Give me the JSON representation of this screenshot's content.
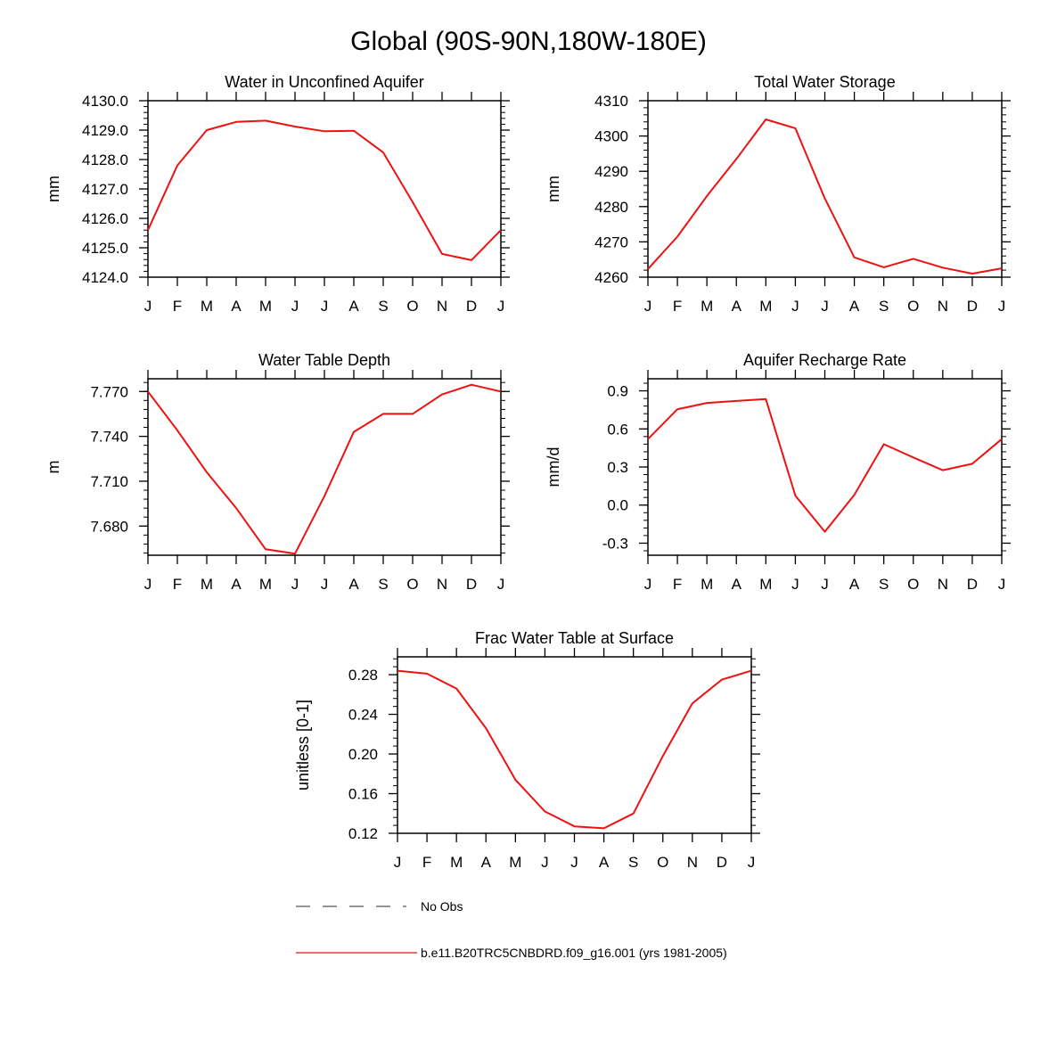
{
  "figure": {
    "title": "Global (90S-90N,180W-180E)",
    "line_color": "#ee1111",
    "obs_color": "#555555"
  },
  "months": [
    "J",
    "F",
    "M",
    "A",
    "M",
    "J",
    "J",
    "A",
    "S",
    "O",
    "N",
    "D",
    "J"
  ],
  "chart_data": [
    {
      "type": "line",
      "title": "Water in Unconfined Aquifer",
      "ylabel": "mm",
      "xlabel": "",
      "ylim": [
        4124.0,
        4130.0
      ],
      "yticks": [
        "4124.0",
        "4125.0",
        "4126.0",
        "4127.0",
        "4128.0",
        "4129.0",
        "4130.0"
      ],
      "ytick_values": [
        4124,
        4125,
        4126,
        4127,
        4128,
        4129,
        4130
      ],
      "yminor_step": 0.2,
      "series": [
        {
          "name": "b.e11.B20TRC5CNBDRD.f09_g16.001 (yrs 1981-2005)",
          "values": [
            4125.6,
            4127.8,
            4129.0,
            4129.28,
            4129.32,
            4129.12,
            4128.96,
            4128.98,
            4128.24,
            4126.55,
            4124.79,
            4124.58,
            4125.6
          ]
        }
      ]
    },
    {
      "type": "line",
      "title": "Total Water Storage",
      "ylabel": "mm",
      "xlabel": "",
      "ylim": [
        4260,
        4310
      ],
      "yticks": [
        "4260",
        "4270",
        "4280",
        "4290",
        "4300",
        "4310"
      ],
      "ytick_values": [
        4260,
        4270,
        4280,
        4290,
        4300,
        4310
      ],
      "yminor_step": 2,
      "series": [
        {
          "name": "b.e11.B20TRC5CNBDRD.f09_g16.001 (yrs 1981-2005)",
          "values": [
            4262.3,
            4271.5,
            4283.0,
            4293.5,
            4304.7,
            4302.2,
            4282.3,
            4265.6,
            4262.8,
            4265.2,
            4262.7,
            4261.0,
            4262.5
          ]
        }
      ]
    },
    {
      "type": "line",
      "title": "Water Table Depth",
      "ylabel": "m",
      "xlabel": "",
      "ylim": [
        7.6605,
        7.7785
      ],
      "yticks": [
        "7.680",
        "7.710",
        "7.740",
        "7.770"
      ],
      "ytick_values": [
        7.68,
        7.71,
        7.74,
        7.77
      ],
      "yminor_step": 0.006,
      "series": [
        {
          "name": "b.e11.B20TRC5CNBDRD.f09_g16.001 (yrs 1981-2005)",
          "values": [
            7.77,
            7.744,
            7.716,
            7.692,
            7.6645,
            7.6615,
            7.7,
            7.743,
            7.755,
            7.755,
            7.768,
            7.7745,
            7.77
          ]
        }
      ]
    },
    {
      "type": "line",
      "title": "Aquifer Recharge Rate",
      "ylabel": "mm/d",
      "xlabel": "",
      "ylim": [
        -0.395,
        0.995
      ],
      "yticks": [
        "-0.3",
        "0.0",
        "0.3",
        "0.6",
        "0.9"
      ],
      "ytick_values": [
        -0.3,
        0.0,
        0.3,
        0.6,
        0.9
      ],
      "yminor_step": 0.06,
      "series": [
        {
          "name": "b.e11.B20TRC5CNBDRD.f09_g16.001 (yrs 1981-2005)",
          "values": [
            0.52,
            0.755,
            0.805,
            0.82,
            0.835,
            0.075,
            -0.21,
            0.08,
            0.48,
            0.375,
            0.275,
            0.325,
            0.52
          ]
        }
      ]
    },
    {
      "type": "line",
      "title": "Frac Water Table at Surface",
      "ylabel": "unitless [0-1]",
      "xlabel": "",
      "ylim": [
        0.12,
        0.298
      ],
      "yticks": [
        "0.12",
        "0.16",
        "0.20",
        "0.24",
        "0.28"
      ],
      "ytick_values": [
        0.12,
        0.16,
        0.2,
        0.24,
        0.28
      ],
      "yminor_step": 0.008,
      "series": [
        {
          "name": "b.e11.B20TRC5CNBDRD.f09_g16.001 (yrs 1981-2005)",
          "values": [
            0.284,
            0.281,
            0.266,
            0.226,
            0.174,
            0.142,
            0.127,
            0.125,
            0.14,
            0.198,
            0.251,
            0.275,
            0.284
          ]
        }
      ]
    }
  ],
  "legend": {
    "obs_label": "No Obs",
    "model_label": "b.e11.B20TRC5CNBDRD.f09_g16.001 (yrs 1981-2005)"
  }
}
